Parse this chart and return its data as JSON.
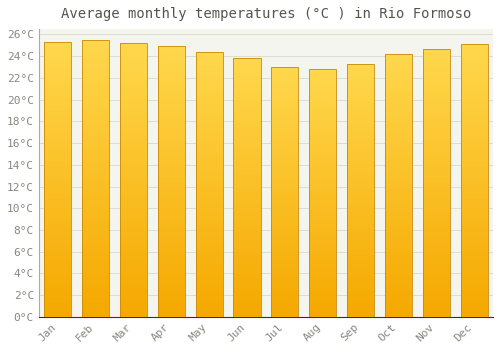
{
  "title": "Average monthly temperatures (°C ) in Rio Formoso",
  "months": [
    "Jan",
    "Feb",
    "Mar",
    "Apr",
    "May",
    "Jun",
    "Jul",
    "Aug",
    "Sep",
    "Oct",
    "Nov",
    "Dec"
  ],
  "values": [
    25.3,
    25.5,
    25.2,
    24.9,
    24.4,
    23.8,
    23.0,
    22.8,
    23.3,
    24.2,
    24.7,
    25.1
  ],
  "bar_color_bottom": "#F5A800",
  "bar_color_top": "#FFD84D",
  "bar_edge_color": "#C8890A",
  "background_color": "#FFFFFF",
  "plot_bg_color": "#F5F5F0",
  "grid_color": "#DDDDCC",
  "ylim": [
    0,
    26
  ],
  "ytick_step": 2,
  "title_fontsize": 10,
  "tick_fontsize": 8,
  "label_color": "#888880"
}
